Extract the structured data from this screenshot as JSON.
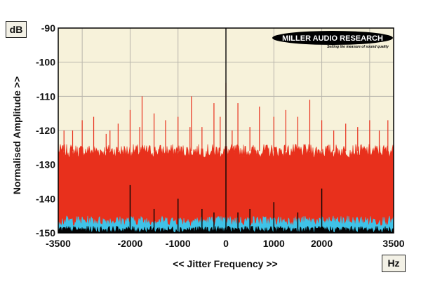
{
  "chart_data": {
    "type": "area",
    "title": "",
    "xlabel": "<< Jitter Frequency >>",
    "ylabel": "Normalised Amplitude >>",
    "x_unit": "Hz",
    "y_unit": "dB",
    "xlim": [
      -3500,
      3500
    ],
    "ylim": [
      -150,
      -90
    ],
    "x_ticks": [
      -3500,
      -2000,
      -1000,
      0,
      1000,
      2000,
      3500
    ],
    "x_tick_labels": [
      "-3500",
      "-2000",
      "-1000",
      "0",
      "1000",
      "2000",
      "3500"
    ],
    "x_grid": [
      -3500,
      -3000,
      -2000,
      -1000,
      0,
      1000,
      2000,
      3000,
      3500
    ],
    "y_ticks": [
      -90,
      -100,
      -110,
      -120,
      -130,
      -140,
      -150
    ],
    "y_tick_labels": [
      "-90",
      "-100",
      "-110",
      "-120",
      "-130",
      "-140",
      "-150"
    ],
    "grid": true,
    "background_color": "#f7f2da",
    "logo": "MILLER AUDIO RESEARCH",
    "logo_tagline": "Setting the measure of sound quality",
    "series": [
      {
        "color": "#e8301c",
        "noise_floor_db": -126,
        "noise_floor_range_db": [
          -128,
          -124
        ],
        "spurs": [
          {
            "x": -3380,
            "y": -120
          },
          {
            "x": -3200,
            "y": -120
          },
          {
            "x": -3000,
            "y": -117
          },
          {
            "x": -2760,
            "y": -116
          },
          {
            "x": -2500,
            "y": -121
          },
          {
            "x": -2420,
            "y": -120
          },
          {
            "x": -2250,
            "y": -118
          },
          {
            "x": -2000,
            "y": -114
          },
          {
            "x": -1800,
            "y": -119
          },
          {
            "x": -1750,
            "y": -110
          },
          {
            "x": -1500,
            "y": -115
          },
          {
            "x": -1260,
            "y": -117
          },
          {
            "x": -1000,
            "y": -116
          },
          {
            "x": -750,
            "y": -119
          },
          {
            "x": -720,
            "y": -110
          },
          {
            "x": -500,
            "y": -119
          },
          {
            "x": -250,
            "y": -112
          },
          {
            "x": -120,
            "y": -116
          },
          {
            "x": 0,
            "y": -106
          },
          {
            "x": 130,
            "y": -120
          },
          {
            "x": 250,
            "y": -112
          },
          {
            "x": 500,
            "y": -119
          },
          {
            "x": 700,
            "y": -113
          },
          {
            "x": 1000,
            "y": -116
          },
          {
            "x": 1250,
            "y": -114
          },
          {
            "x": 1500,
            "y": -116
          },
          {
            "x": 1750,
            "y": -111
          },
          {
            "x": 2000,
            "y": -117
          },
          {
            "x": 2250,
            "y": -120
          },
          {
            "x": 2500,
            "y": -118
          },
          {
            "x": 2750,
            "y": -119
          },
          {
            "x": 3000,
            "y": -117
          },
          {
            "x": 3200,
            "y": -120
          },
          {
            "x": 3380,
            "y": -117
          }
        ]
      },
      {
        "color": "#3fc3e8",
        "noise_floor_db": -147,
        "noise_floor_range_db": [
          -148,
          -145
        ]
      },
      {
        "color": "#050505",
        "noise_floor_db": -149,
        "peaks": [
          {
            "x": 0,
            "y": -90
          },
          {
            "x": -2000,
            "y": -136
          },
          {
            "x": 2000,
            "y": -137
          },
          {
            "x": -1000,
            "y": -140
          },
          {
            "x": 1000,
            "y": -141
          },
          {
            "x": -500,
            "y": -143
          },
          {
            "x": 500,
            "y": -143
          },
          {
            "x": -250,
            "y": -144
          },
          {
            "x": 250,
            "y": -144
          },
          {
            "x": -1500,
            "y": -143
          },
          {
            "x": 1500,
            "y": -144
          }
        ]
      }
    ]
  }
}
